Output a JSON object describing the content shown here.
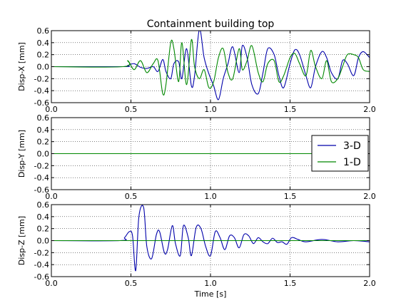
{
  "figure": {
    "title": "Containment building top"
  },
  "chart_data": [
    {
      "type": "line",
      "ylabel": "Disp-X [mm]",
      "xlabel": "",
      "xlim": [
        0,
        2
      ],
      "ylim": [
        -0.6,
        0.6
      ],
      "x_ticks": [
        "0.0",
        "0.5",
        "1.0",
        "1.5",
        "2.0"
      ],
      "y_ticks": [
        "-0.6",
        "-0.4",
        "-0.2",
        "0.0",
        "0.2",
        "0.4",
        "0.6"
      ],
      "grid": true,
      "legend": null,
      "series": [
        {
          "name": "3-D",
          "color": "#0000aa",
          "x": [
            0,
            0.45,
            0.48,
            0.52,
            0.56,
            0.6,
            0.64,
            0.67,
            0.7,
            0.72,
            0.75,
            0.77,
            0.8,
            0.82,
            0.85,
            0.88,
            0.9,
            0.93,
            0.96,
            0.99,
            1.02,
            1.05,
            1.08,
            1.11,
            1.14,
            1.18,
            1.2,
            1.23,
            1.26,
            1.3,
            1.33,
            1.36,
            1.4,
            1.43,
            1.46,
            1.5,
            1.53,
            1.56,
            1.6,
            1.63,
            1.66,
            1.7,
            1.73,
            1.76,
            1.8,
            1.83,
            1.86,
            1.9,
            1.93,
            1.96,
            2.0
          ],
          "y": [
            0,
            0,
            0.02,
            0.05,
            -0.01,
            -0.03,
            0.0,
            -0.08,
            0.12,
            -0.08,
            -0.2,
            0.05,
            0.08,
            -0.2,
            0.3,
            -0.32,
            -0.15,
            0.62,
            0.15,
            -0.12,
            -0.32,
            -0.55,
            -0.2,
            0.05,
            0.33,
            -0.1,
            0.35,
            0.15,
            -0.3,
            -0.45,
            -0.1,
            0.3,
            0.2,
            -0.15,
            -0.35,
            0.05,
            0.28,
            0.2,
            -0.15,
            -0.35,
            0.0,
            0.25,
            0.15,
            -0.1,
            -0.2,
            0.1,
            0.05,
            -0.15,
            0.15,
            0.25,
            0.15
          ]
        },
        {
          "name": "1-D",
          "color": "#008800",
          "x": [
            0,
            0.45,
            0.48,
            0.52,
            0.56,
            0.6,
            0.64,
            0.67,
            0.7,
            0.72,
            0.75,
            0.77,
            0.8,
            0.82,
            0.85,
            0.88,
            0.9,
            0.93,
            0.96,
            0.99,
            1.02,
            1.05,
            1.08,
            1.11,
            1.14,
            1.18,
            1.2,
            1.23,
            1.26,
            1.3,
            1.33,
            1.36,
            1.4,
            1.43,
            1.46,
            1.5,
            1.53,
            1.56,
            1.6,
            1.63,
            1.66,
            1.7,
            1.73,
            1.76,
            1.8,
            1.83,
            1.86,
            1.9,
            1.93,
            1.96,
            2.0
          ],
          "y": [
            0,
            0,
            0.1,
            -0.05,
            0.1,
            -0.1,
            0.05,
            0.1,
            -0.45,
            -0.3,
            0.4,
            0.3,
            -0.25,
            0.4,
            -0.3,
            0.45,
            0.0,
            -0.2,
            -0.05,
            -0.35,
            -0.25,
            0.15,
            0.3,
            -0.1,
            -0.2,
            0.3,
            -0.05,
            0.1,
            0.35,
            -0.1,
            -0.25,
            0.05,
            0.1,
            -0.25,
            -0.15,
            0.15,
            0.22,
            0.05,
            -0.15,
            0.27,
            0.0,
            -0.2,
            0.1,
            -0.25,
            -0.2,
            0.0,
            0.2,
            0.2,
            0.15,
            -0.05,
            -0.08
          ]
        }
      ]
    },
    {
      "type": "line",
      "ylabel": "Disp-Y [mm]",
      "xlabel": "",
      "xlim": [
        0,
        2
      ],
      "ylim": [
        -0.6,
        0.6
      ],
      "x_ticks": [
        "0.0",
        "0.5",
        "1.0",
        "1.5",
        "2.0"
      ],
      "y_ticks": [
        "-0.6",
        "-0.4",
        "-0.2",
        "0.0",
        "0.2",
        "0.4",
        "0.6"
      ],
      "grid": true,
      "legend": "right",
      "series": [
        {
          "name": "3-D",
          "color": "#0000aa",
          "x": [
            0,
            0.5,
            1.0,
            1.5,
            2.0
          ],
          "y": [
            0,
            0,
            0,
            0,
            0
          ]
        },
        {
          "name": "1-D",
          "color": "#008800",
          "x": [
            0,
            0.5,
            1.0,
            1.5,
            2.0
          ],
          "y": [
            0,
            0,
            0,
            0,
            0
          ]
        }
      ]
    },
    {
      "type": "line",
      "ylabel": "Disp-Z [mm]",
      "xlabel": "Time [s]",
      "xlim": [
        0,
        2
      ],
      "ylim": [
        -0.6,
        0.6
      ],
      "x_ticks": [
        "0.0",
        "0.5",
        "1.0",
        "1.5",
        "2.0"
      ],
      "y_ticks": [
        "-0.6",
        "-0.4",
        "-0.2",
        "0.0",
        "0.2",
        "0.4",
        "0.6"
      ],
      "grid": true,
      "legend": null,
      "series": [
        {
          "name": "3-D",
          "color": "#0000aa",
          "x": [
            0,
            0.43,
            0.46,
            0.49,
            0.51,
            0.53,
            0.55,
            0.58,
            0.6,
            0.63,
            0.66,
            0.68,
            0.71,
            0.73,
            0.76,
            0.78,
            0.81,
            0.83,
            0.86,
            0.88,
            0.91,
            0.94,
            0.97,
            1.0,
            1.03,
            1.06,
            1.09,
            1.12,
            1.15,
            1.18,
            1.21,
            1.24,
            1.27,
            1.3,
            1.33,
            1.36,
            1.39,
            1.42,
            1.45,
            1.48,
            1.51,
            1.55,
            1.6,
            1.7,
            1.8,
            1.9,
            2.0
          ],
          "y": [
            0,
            0,
            0.05,
            0.15,
            0.08,
            -0.5,
            0.4,
            0.55,
            -0.1,
            -0.3,
            0.1,
            0.15,
            -0.2,
            -0.15,
            0.25,
            -0.05,
            -0.25,
            0.25,
            0.05,
            -0.25,
            0.22,
            0.2,
            -0.1,
            -0.25,
            0.15,
            0.05,
            -0.15,
            0.08,
            0.05,
            -0.12,
            0.1,
            0.08,
            -0.05,
            0.05,
            -0.02,
            -0.05,
            0.04,
            -0.03,
            -0.02,
            -0.06,
            0.05,
            0.02,
            -0.02,
            0.02,
            -0.02,
            0.0,
            -0.02
          ]
        },
        {
          "name": "1-D",
          "color": "#008800",
          "x": [
            0,
            0.5,
            1.0,
            1.5,
            2.0
          ],
          "y": [
            0,
            0,
            0,
            0,
            0
          ]
        }
      ]
    }
  ]
}
